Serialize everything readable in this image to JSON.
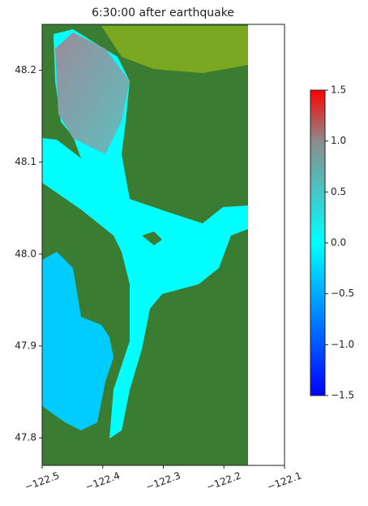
{
  "chart_data": {
    "type": "heatmap",
    "title": "6:30:00 after earthquake",
    "xlim": [
      -122.5,
      -122.1
    ],
    "xticks": [
      {
        "value": -122.5,
        "label": "−122.5"
      },
      {
        "value": -122.4,
        "label": "−122.4"
      },
      {
        "value": -122.3,
        "label": "−122.3"
      },
      {
        "value": -122.2,
        "label": "−122.2"
      },
      {
        "value": -122.1,
        "label": "−122.1"
      }
    ],
    "ylim": [
      47.77,
      48.25
    ],
    "yticks": [
      47.8,
      47.9,
      {
        "value": 48.0,
        "label": "48.0"
      },
      48.1,
      48.2
    ],
    "colorbar": {
      "lim": [
        -1.5,
        1.5
      ],
      "ticks": [
        {
          "value": -1.5,
          "label": "−1.5"
        },
        {
          "value": -1.0,
          "label": "−1.0"
        },
        {
          "value": -0.5,
          "label": "−0.5"
        },
        {
          "value": 0.0,
          "label": "0.0"
        },
        0.5,
        {
          "value": 1.0,
          "label": "1.0"
        },
        1.5
      ],
      "colormap": [
        {
          "value": -1.5,
          "color": "#0000ff"
        },
        {
          "value": 0.0,
          "color": "#00ffff"
        },
        {
          "value": 1.0,
          "color": "#8c8c8c"
        },
        {
          "value": 1.5,
          "color": "#ff0000"
        }
      ]
    }
  }
}
